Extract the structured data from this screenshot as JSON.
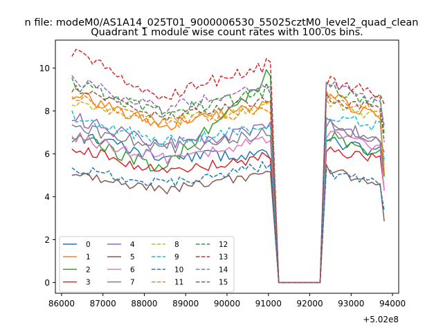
{
  "chart_data": {
    "type": "line",
    "suptitle": "n file: modeM0/AS1A14_025T01_9000006530_55025cztM0_level2_quad_clean",
    "title": "Quadrant 1 module wise count rates with 100.0s bins.",
    "xlabel": "",
    "ylabel": "",
    "x_offset_label": "+5.02e8",
    "xlim": [
      85850,
      94150
    ],
    "ylim": [
      -0.5,
      11.3
    ],
    "x_ticks": [
      86000,
      87000,
      88000,
      89000,
      90000,
      91000,
      92000,
      93000,
      94000
    ],
    "x_tick_labels": [
      "86000",
      "87000",
      "88000",
      "89000",
      "90000",
      "91000",
      "92000",
      "93000",
      "94000"
    ],
    "y_ticks": [
      0,
      2,
      4,
      6,
      8,
      10
    ],
    "y_tick_labels": [
      "0",
      "2",
      "4",
      "6",
      "8",
      "10"
    ],
    "legend_position": "lower-left",
    "gap": {
      "drop_start": 91100,
      "zero_start": 91250,
      "zero_end": 92250,
      "rise_end": 92400
    },
    "x_start": 86250,
    "x_end": 93850,
    "bin": 100,
    "series": [
      {
        "name": "0",
        "color": "#1f77b4",
        "dash": "solid",
        "start": 6.9,
        "mid": 5.8,
        "pre_drop": 6.0,
        "post": 6.6,
        "post_end": 6.0,
        "end": 5.5,
        "amp": 0.28,
        "seed": 11
      },
      {
        "name": "1",
        "color": "#ff7f0e",
        "dash": "solid",
        "start": 8.8,
        "mid": 7.3,
        "pre_drop": 8.3,
        "post": 8.7,
        "post_end": 7.6,
        "end": 4.8,
        "amp": 0.3,
        "seed": 23
      },
      {
        "name": "2",
        "color": "#2ca02c",
        "dash": "solid",
        "start": 6.8,
        "mid": 5.3,
        "pre_drop": 9.7,
        "post": 6.9,
        "post_end": 5.9,
        "end": 5.0,
        "amp": 0.3,
        "seed": 37
      },
      {
        "name": "3",
        "color": "#d62728",
        "dash": "solid",
        "start": 6.3,
        "mid": 5.2,
        "pre_drop": 5.9,
        "post": 6.2,
        "post_end": 5.6,
        "end": 4.2,
        "amp": 0.28,
        "seed": 41
      },
      {
        "name": "4",
        "color": "#9467bd",
        "dash": "solid",
        "start": 7.7,
        "mid": 6.4,
        "pre_drop": 7.2,
        "post": 7.5,
        "post_end": 6.6,
        "end": 6.0,
        "amp": 0.3,
        "seed": 53
      },
      {
        "name": "5",
        "color": "#8c564b",
        "dash": "solid",
        "start": 5.1,
        "mid": 4.3,
        "pre_drop": 5.1,
        "post": 5.3,
        "post_end": 4.4,
        "end": 3.0,
        "amp": 0.22,
        "seed": 67
      },
      {
        "name": "6",
        "color": "#e377c2",
        "dash": "solid",
        "start": 6.8,
        "mid": 5.8,
        "pre_drop": 6.6,
        "post": 6.9,
        "post_end": 6.1,
        "end": 4.3,
        "amp": 0.3,
        "seed": 71
      },
      {
        "name": "7",
        "color": "#7f7f7f",
        "dash": "solid",
        "start": 7.4,
        "mid": 6.2,
        "pre_drop": 7.0,
        "post": 7.4,
        "post_end": 6.6,
        "end": 5.2,
        "amp": 0.3,
        "seed": 83
      },
      {
        "name": "8",
        "color": "#bcbd22",
        "dash": "dashed",
        "start": 8.3,
        "mid": 7.5,
        "pre_drop": 8.3,
        "post": 8.4,
        "post_end": 7.6,
        "end": 6.9,
        "amp": 0.25,
        "seed": 97
      },
      {
        "name": "9",
        "color": "#17becf",
        "dash": "dashed",
        "start": 7.8,
        "mid": 6.6,
        "pre_drop": 7.2,
        "post": 7.8,
        "post_end": 7.2,
        "end": 5.3,
        "amp": 0.28,
        "seed": 103
      },
      {
        "name": "10",
        "color": "#1f77b4",
        "dash": "dashed",
        "start": 5.3,
        "mid": 4.6,
        "pre_drop": 5.5,
        "post": 5.1,
        "post_end": 4.6,
        "end": 3.5,
        "amp": 0.22,
        "seed": 113
      },
      {
        "name": "11",
        "color": "#ff7f0e",
        "dash": "dashed",
        "start": 8.6,
        "mid": 7.4,
        "pre_drop": 8.1,
        "post": 8.8,
        "post_end": 7.8,
        "end": 4.9,
        "amp": 0.28,
        "seed": 127
      },
      {
        "name": "12",
        "color": "#2ca02c",
        "dash": "dashed",
        "start": 9.3,
        "mid": 7.9,
        "pre_drop": 9.0,
        "post": 9.0,
        "post_end": 8.4,
        "end": 6.6,
        "amp": 0.3,
        "seed": 131
      },
      {
        "name": "13",
        "color": "#d62728",
        "dash": "dashed",
        "start": 10.7,
        "mid": 8.7,
        "pre_drop": 10.2,
        "post": 9.4,
        "post_end": 8.8,
        "end": 8.1,
        "amp": 0.3,
        "seed": 149
      },
      {
        "name": "14",
        "color": "#9467bd",
        "dash": "dashed",
        "start": 9.5,
        "mid": 8.1,
        "pre_drop": 9.2,
        "post": 9.3,
        "post_end": 8.3,
        "end": 7.3,
        "amp": 0.25,
        "seed": 157
      },
      {
        "name": "15",
        "color": "#8c564b",
        "dash": "dashed",
        "start": 9.0,
        "mid": 7.7,
        "pre_drop": 8.6,
        "post": 8.6,
        "post_end": 7.9,
        "end": 6.6,
        "amp": 0.25,
        "seed": 163
      }
    ]
  }
}
